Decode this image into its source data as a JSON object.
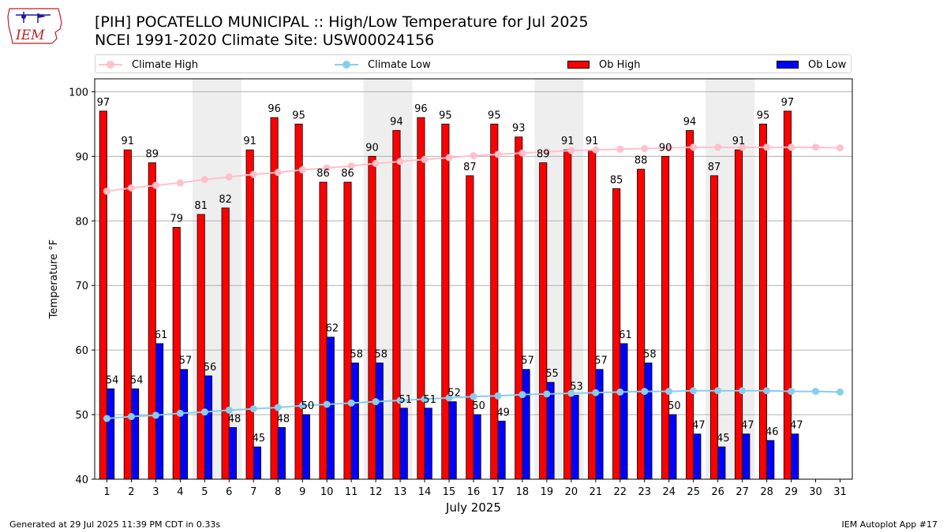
{
  "header": {
    "title": "[PIH] POCATELLO MUNICIPAL :: High/Low Temperature for Jul 2025",
    "subtitle": "NCEI 1991-2020 Climate Site: USW00024156"
  },
  "logo": {
    "text": "IEM"
  },
  "footer": {
    "left": "Generated at 29 Jul 2025 11:39 PM CDT in 0.33s",
    "right": "IEM Autoplot App #17"
  },
  "colors": {
    "ob_high": "#ff0000",
    "ob_low": "#0000ff",
    "climate_high": "#ffc0cb",
    "climate_low": "#87ceeb",
    "weekend_shade": "#eeeeee",
    "grid": "#b0b0b0"
  },
  "chart_data": {
    "type": "bar",
    "xlabel": "July 2025",
    "ylabel": "Temperature °F",
    "xlim": [
      1,
      31
    ],
    "ylim": [
      40,
      102
    ],
    "yticks": [
      40,
      50,
      60,
      70,
      80,
      90,
      100
    ],
    "grid": "horizontal",
    "legend_position": "top",
    "shaded_days": [
      5,
      6,
      12,
      13,
      19,
      20,
      26,
      27
    ],
    "categories": [
      "1",
      "2",
      "3",
      "4",
      "5",
      "6",
      "7",
      "8",
      "9",
      "10",
      "11",
      "12",
      "13",
      "14",
      "15",
      "16",
      "17",
      "18",
      "19",
      "20",
      "21",
      "22",
      "23",
      "24",
      "25",
      "26",
      "27",
      "28",
      "29",
      "30",
      "31"
    ],
    "series": [
      {
        "name": "Ob High",
        "kind": "bar",
        "values": [
          97,
          91,
          89,
          79,
          81,
          82,
          91,
          96,
          95,
          86,
          86,
          90,
          94,
          96,
          95,
          87,
          95,
          93,
          89,
          91,
          91,
          85,
          88,
          90,
          94,
          87,
          91,
          95,
          97,
          null,
          null
        ]
      },
      {
        "name": "Ob Low",
        "kind": "bar",
        "values": [
          54,
          54,
          61,
          57,
          56,
          48,
          45,
          48,
          50,
          62,
          58,
          58,
          51,
          51,
          52,
          50,
          49,
          57,
          55,
          53,
          57,
          61,
          58,
          50,
          47,
          45,
          47,
          46,
          47,
          null,
          null
        ]
      },
      {
        "name": "Climate High",
        "kind": "line",
        "values": [
          84.6,
          85.1,
          85.5,
          85.9,
          86.4,
          86.8,
          87.2,
          87.5,
          87.9,
          88.2,
          88.5,
          88.9,
          89.2,
          89.5,
          89.8,
          90.1,
          90.3,
          90.5,
          90.7,
          90.9,
          91.0,
          91.1,
          91.2,
          91.3,
          91.4,
          91.4,
          91.4,
          91.4,
          91.4,
          91.4,
          91.3
        ]
      },
      {
        "name": "Climate Low",
        "kind": "line",
        "values": [
          49.4,
          49.7,
          49.9,
          50.2,
          50.4,
          50.7,
          50.9,
          51.1,
          51.4,
          51.6,
          51.8,
          52.0,
          52.2,
          52.4,
          52.6,
          52.8,
          52.9,
          53.1,
          53.2,
          53.3,
          53.4,
          53.5,
          53.6,
          53.6,
          53.7,
          53.7,
          53.7,
          53.7,
          53.6,
          53.6,
          53.5
        ]
      }
    ]
  }
}
